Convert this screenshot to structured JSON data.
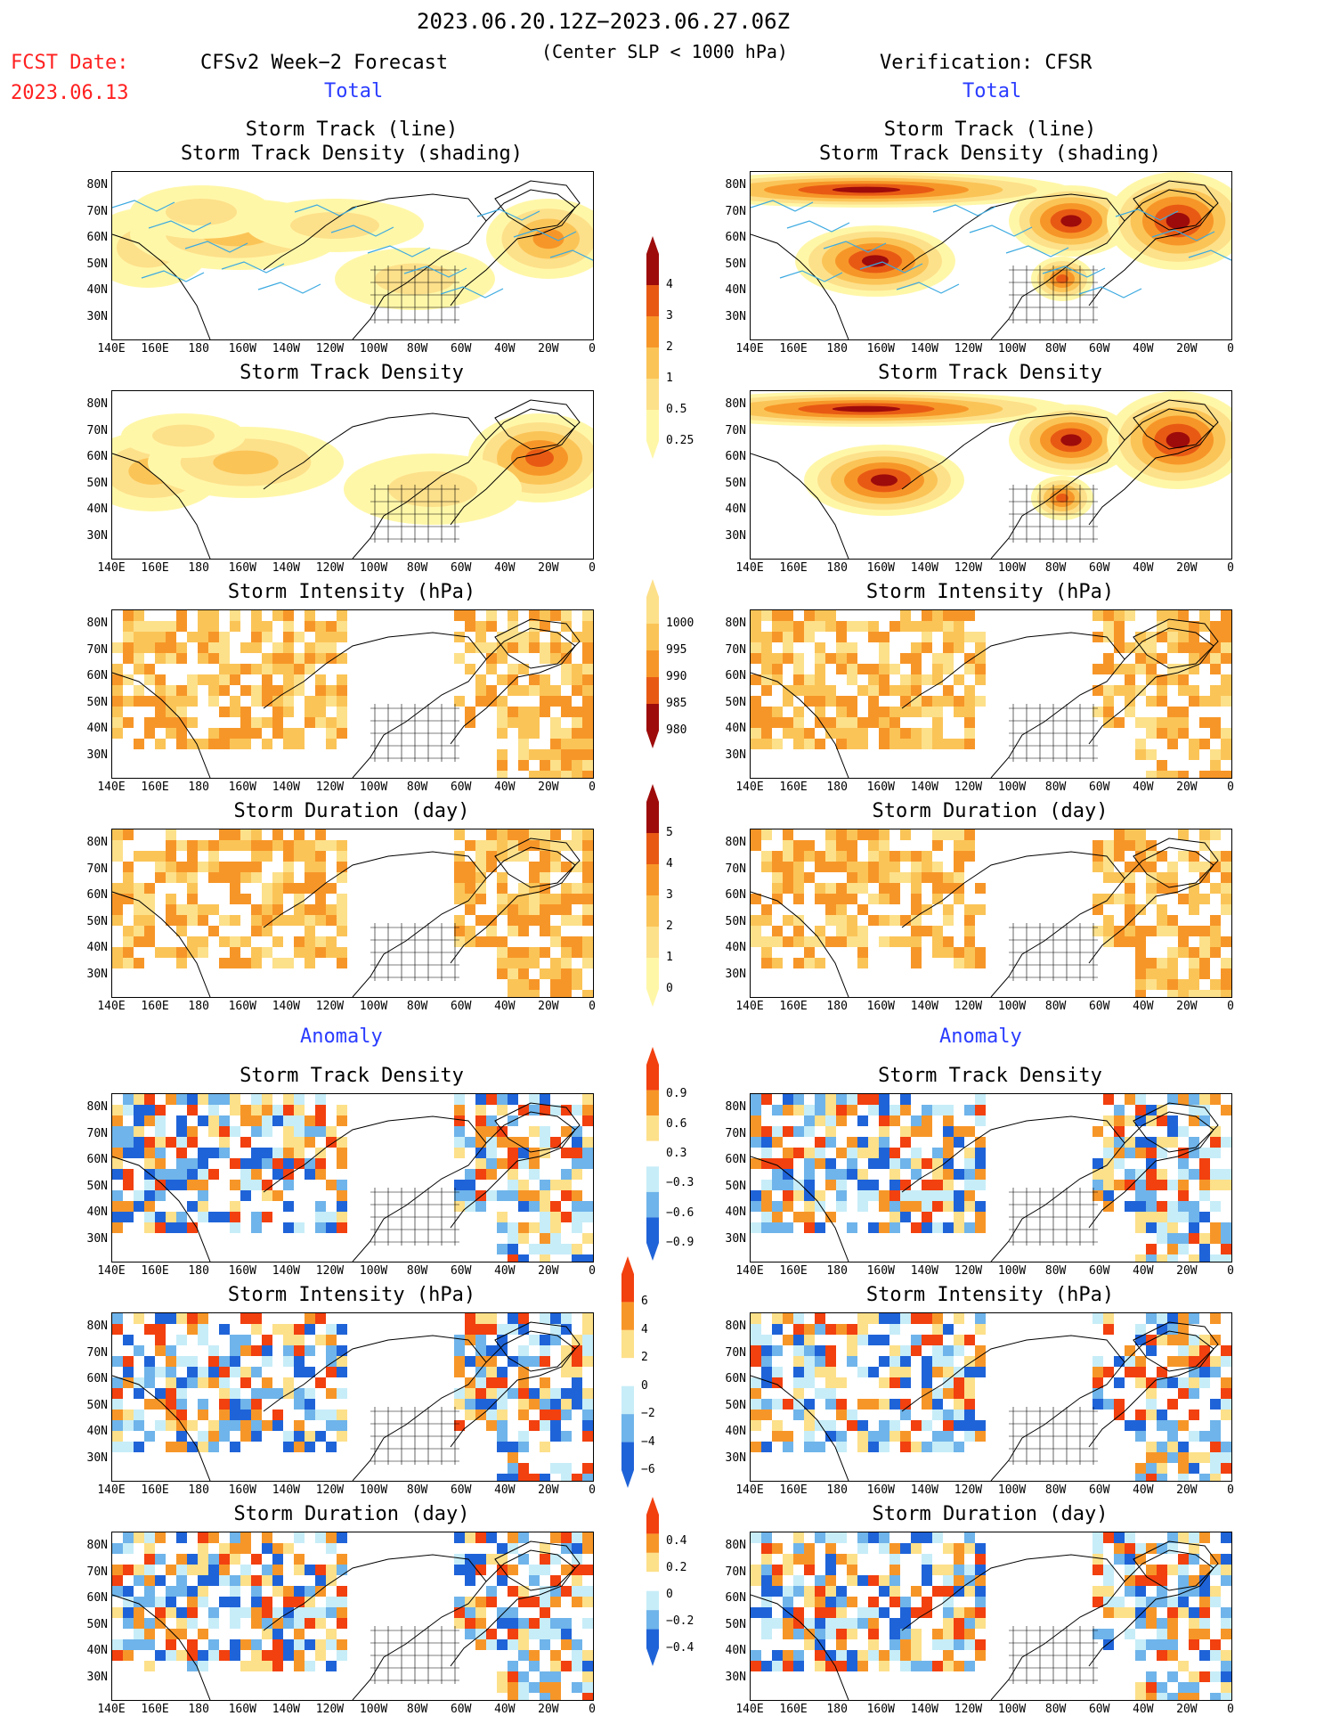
{
  "header": {
    "date_range": "2023.06.20.12Z−2023.06.27.06Z",
    "criteria": "(Center SLP < 1000 hPa)",
    "fcst_label": "FCST Date:",
    "fcst_date": "2023.06.13",
    "left_title": "CFSv2 Week−2 Forecast",
    "right_title": "Verification: CFSR",
    "total_label": "Total",
    "anomaly_label": "Anomaly"
  },
  "panel_titles": {
    "track_line": "Storm Track (line)",
    "track_shading": "Storm Track Density (shading)",
    "density": "Storm Track Density",
    "intensity": "Storm Intensity (hPa)",
    "duration": "Storm Duration (day)"
  },
  "axes": {
    "lat_labels": [
      "80N",
      "70N",
      "60N",
      "50N",
      "40N",
      "30N"
    ],
    "lon_labels": [
      "140E",
      "160E",
      "180",
      "160W",
      "140W",
      "120W",
      "100W",
      "80W",
      "60W",
      "40W",
      "20W",
      "0"
    ]
  },
  "colorbars": {
    "density_total": [
      "4",
      "3",
      "2",
      "1",
      "0.5",
      "0.25"
    ],
    "intensity_total": [
      "1000",
      "995",
      "990",
      "985",
      "980"
    ],
    "duration_total": [
      "5",
      "4",
      "3",
      "2",
      "1",
      "0"
    ],
    "density_anom": [
      "0.9",
      "0.6",
      "0.3",
      "−0.3",
      "−0.6",
      "−0.9"
    ],
    "intensity_anom": [
      "6",
      "4",
      "2",
      "0",
      "−2",
      "−4",
      "−6"
    ],
    "duration_anom": [
      "0.4",
      "0.2",
      "0",
      "−0.2",
      "−0.4"
    ]
  },
  "colors": {
    "total_scale": [
      "#fff7a8",
      "#fde08a",
      "#fbc457",
      "#f79628",
      "#e85a14",
      "#9e0b0b"
    ],
    "anom_pos": [
      "#fde08a",
      "#f79628",
      "#f2400f"
    ],
    "anom_neg": [
      "#c7edf8",
      "#6fb4ea",
      "#1f63d8"
    ],
    "track_line": "#3aa9e0"
  }
}
